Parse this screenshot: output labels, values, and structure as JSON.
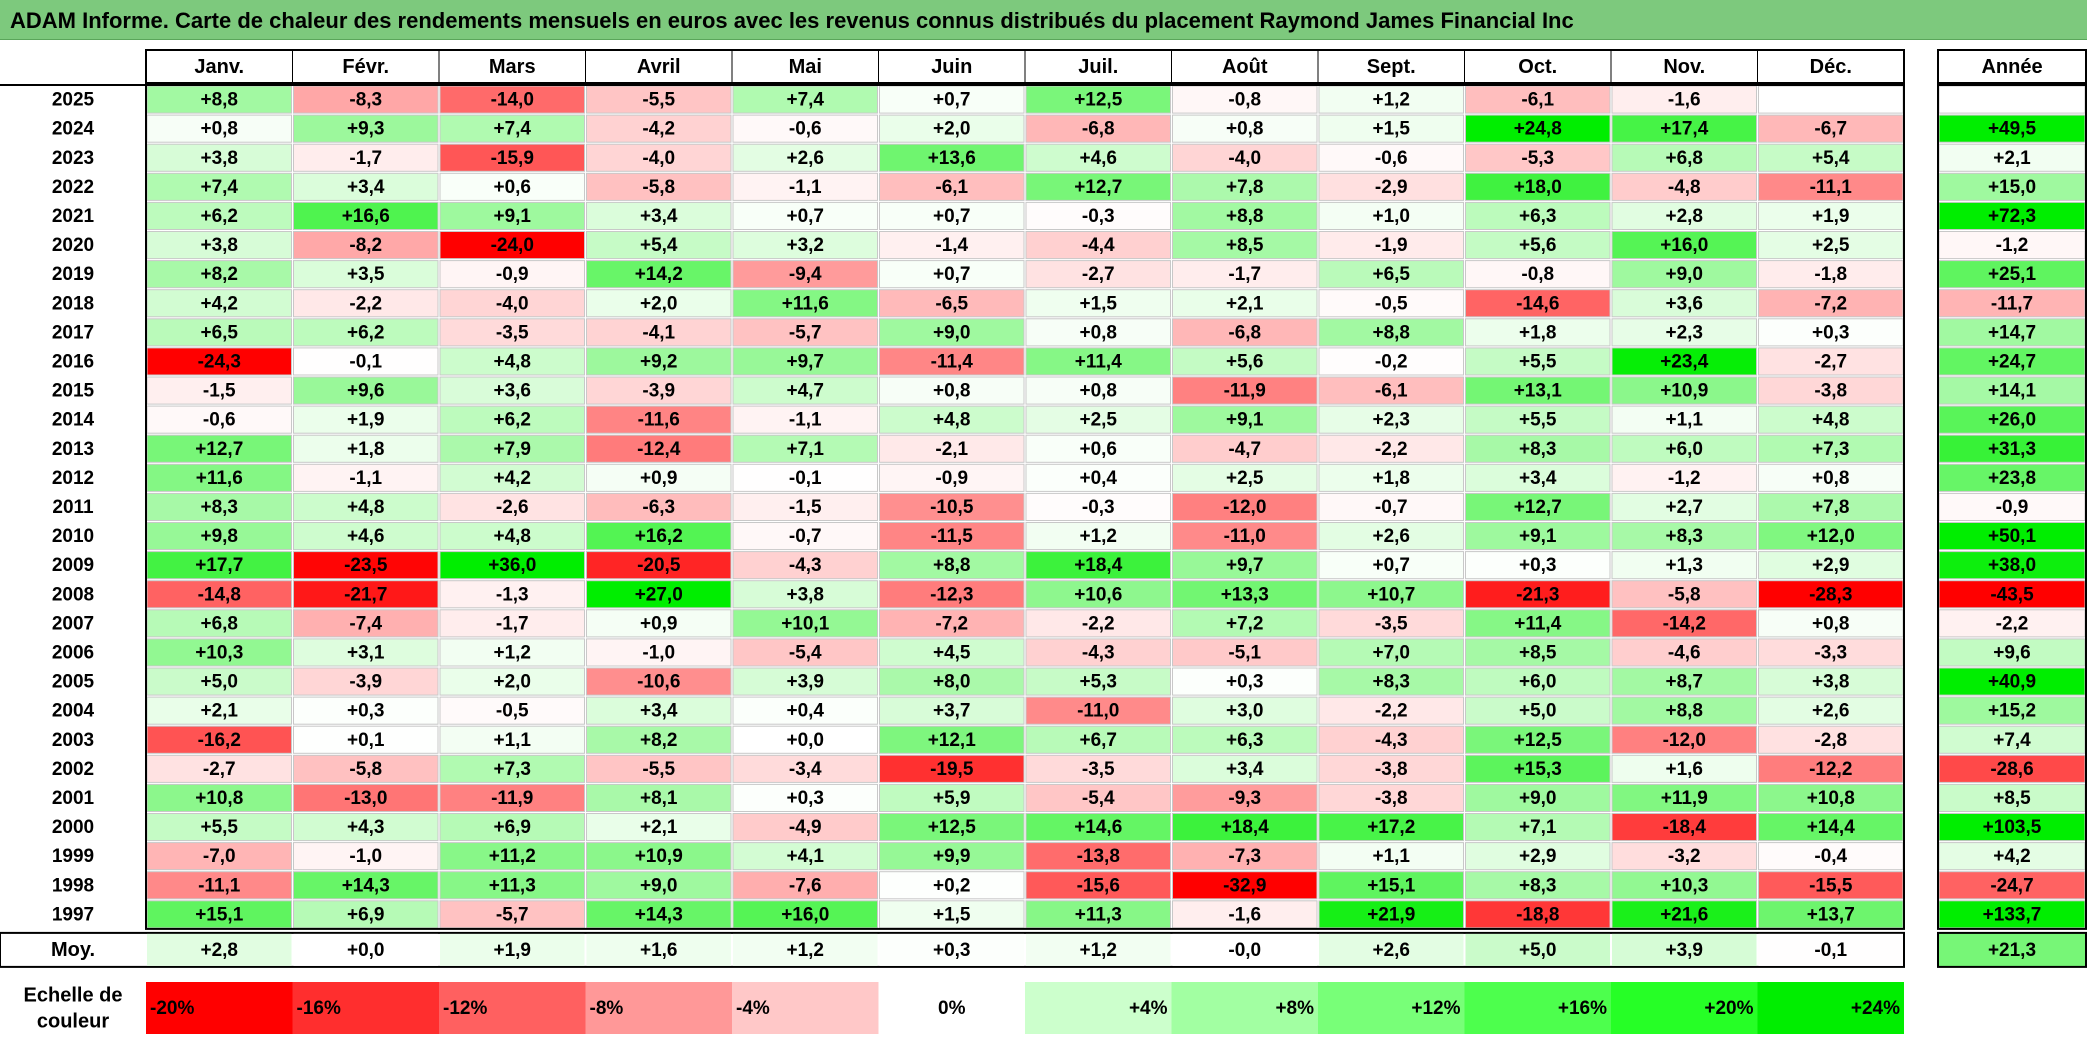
{
  "title": "ADAM Informe. Carte de chaleur des rendements mensuels en euros avec les revenus connus distribués du placement Raymond James Financial Inc",
  "chart_data": {
    "type": "heatmap",
    "months": [
      "Janv.",
      "Févr.",
      "Mars",
      "Avril",
      "Mai",
      "Juin",
      "Juil.",
      "Août",
      "Sept.",
      "Oct.",
      "Nov.",
      "Déc."
    ],
    "year_header": "Année",
    "rows": [
      {
        "year": "2025",
        "months": [
          "+8,8",
          "-8,3",
          "-14,0",
          "-5,5",
          "+7,4",
          "+0,7",
          "+12,5",
          "-0,8",
          "+1,2",
          "-6,1",
          "-1,6",
          ""
        ],
        "annual": ""
      },
      {
        "year": "2024",
        "months": [
          "+0,8",
          "+9,3",
          "+7,4",
          "-4,2",
          "-0,6",
          "+2,0",
          "-6,8",
          "+0,8",
          "+1,5",
          "+24,8",
          "+17,4",
          "-6,7"
        ],
        "annual": "+49,5"
      },
      {
        "year": "2023",
        "months": [
          "+3,8",
          "-1,7",
          "-15,9",
          "-4,0",
          "+2,6",
          "+13,6",
          "+4,6",
          "-4,0",
          "-0,6",
          "-5,3",
          "+6,8",
          "+5,4"
        ],
        "annual": "+2,1"
      },
      {
        "year": "2022",
        "months": [
          "+7,4",
          "+3,4",
          "+0,6",
          "-5,8",
          "-1,1",
          "-6,1",
          "+12,7",
          "+7,8",
          "-2,9",
          "+18,0",
          "-4,8",
          "-11,1"
        ],
        "annual": "+15,0"
      },
      {
        "year": "2021",
        "months": [
          "+6,2",
          "+16,6",
          "+9,1",
          "+3,4",
          "+0,7",
          "+0,7",
          "-0,3",
          "+8,8",
          "+1,0",
          "+6,3",
          "+2,8",
          "+1,9"
        ],
        "annual": "+72,3"
      },
      {
        "year": "2020",
        "months": [
          "+3,8",
          "-8,2",
          "-24,0",
          "+5,4",
          "+3,2",
          "-1,4",
          "-4,4",
          "+8,5",
          "-1,9",
          "+5,6",
          "+16,0",
          "+2,5"
        ],
        "annual": "-1,2"
      },
      {
        "year": "2019",
        "months": [
          "+8,2",
          "+3,5",
          "-0,9",
          "+14,2",
          "-9,4",
          "+0,7",
          "-2,7",
          "-1,7",
          "+6,5",
          "-0,8",
          "+9,0",
          "-1,8"
        ],
        "annual": "+25,1"
      },
      {
        "year": "2018",
        "months": [
          "+4,2",
          "-2,2",
          "-4,0",
          "+2,0",
          "+11,6",
          "-6,5",
          "+1,5",
          "+2,1",
          "-0,5",
          "-14,6",
          "+3,6",
          "-7,2"
        ],
        "annual": "-11,7"
      },
      {
        "year": "2017",
        "months": [
          "+6,5",
          "+6,2",
          "-3,5",
          "-4,1",
          "-5,7",
          "+9,0",
          "+0,8",
          "-6,8",
          "+8,8",
          "+1,8",
          "+2,3",
          "+0,3"
        ],
        "annual": "+14,7"
      },
      {
        "year": "2016",
        "months": [
          "-24,3",
          "-0,1",
          "+4,8",
          "+9,2",
          "+9,7",
          "-11,4",
          "+11,4",
          "+5,6",
          "-0,2",
          "+5,5",
          "+23,4",
          "-2,7"
        ],
        "annual": "+24,7"
      },
      {
        "year": "2015",
        "months": [
          "-1,5",
          "+9,6",
          "+3,6",
          "-3,9",
          "+4,7",
          "+0,8",
          "+0,8",
          "-11,9",
          "-6,1",
          "+13,1",
          "+10,9",
          "-3,8"
        ],
        "annual": "+14,1"
      },
      {
        "year": "2014",
        "months": [
          "-0,6",
          "+1,9",
          "+6,2",
          "-11,6",
          "-1,1",
          "+4,8",
          "+2,5",
          "+9,1",
          "+2,3",
          "+5,5",
          "+1,1",
          "+4,8"
        ],
        "annual": "+26,0"
      },
      {
        "year": "2013",
        "months": [
          "+12,7",
          "+1,8",
          "+7,9",
          "-12,4",
          "+7,1",
          "-2,1",
          "+0,6",
          "-4,7",
          "-2,2",
          "+8,3",
          "+6,0",
          "+7,3"
        ],
        "annual": "+31,3"
      },
      {
        "year": "2012",
        "months": [
          "+11,6",
          "-1,1",
          "+4,2",
          "+0,9",
          "-0,1",
          "-0,9",
          "+0,4",
          "+2,5",
          "+1,8",
          "+3,4",
          "-1,2",
          "+0,8"
        ],
        "annual": "+23,8"
      },
      {
        "year": "2011",
        "months": [
          "+8,3",
          "+4,8",
          "-2,6",
          "-6,3",
          "-1,5",
          "-10,5",
          "-0,3",
          "-12,0",
          "-0,7",
          "+12,7",
          "+2,7",
          "+7,8"
        ],
        "annual": "-0,9"
      },
      {
        "year": "2010",
        "months": [
          "+9,8",
          "+4,6",
          "+4,8",
          "+16,2",
          "-0,7",
          "-11,5",
          "+1,2",
          "-11,0",
          "+2,6",
          "+9,1",
          "+8,3",
          "+12,0"
        ],
        "annual": "+50,1"
      },
      {
        "year": "2009",
        "months": [
          "+17,7",
          "-23,5",
          "+36,0",
          "-20,5",
          "-4,3",
          "+8,8",
          "+18,4",
          "+9,7",
          "+0,7",
          "+0,3",
          "+1,3",
          "+2,9"
        ],
        "annual": "+38,0"
      },
      {
        "year": "2008",
        "months": [
          "-14,8",
          "-21,7",
          "-1,3",
          "+27,0",
          "+3,8",
          "-12,3",
          "+10,6",
          "+13,3",
          "+10,7",
          "-21,3",
          "-5,8",
          "-28,3"
        ],
        "annual": "-43,5"
      },
      {
        "year": "2007",
        "months": [
          "+6,8",
          "-7,4",
          "-1,7",
          "+0,9",
          "+10,1",
          "-7,2",
          "-2,2",
          "+7,2",
          "-3,5",
          "+11,4",
          "-14,2",
          "+0,8"
        ],
        "annual": "-2,2"
      },
      {
        "year": "2006",
        "months": [
          "+10,3",
          "+3,1",
          "+1,2",
          "-1,0",
          "-5,4",
          "+4,5",
          "-4,3",
          "-5,1",
          "+7,0",
          "+8,5",
          "-4,6",
          "-3,3"
        ],
        "annual": "+9,6"
      },
      {
        "year": "2005",
        "months": [
          "+5,0",
          "-3,9",
          "+2,0",
          "-10,6",
          "+3,9",
          "+8,0",
          "+5,3",
          "+0,3",
          "+8,3",
          "+6,0",
          "+8,7",
          "+3,8"
        ],
        "annual": "+40,9"
      },
      {
        "year": "2004",
        "months": [
          "+2,1",
          "+0,3",
          "-0,5",
          "+3,4",
          "+0,4",
          "+3,7",
          "-11,0",
          "+3,0",
          "-2,2",
          "+5,0",
          "+8,8",
          "+2,6"
        ],
        "annual": "+15,2"
      },
      {
        "year": "2003",
        "months": [
          "-16,2",
          "+0,1",
          "+1,1",
          "+8,2",
          "+0,0",
          "+12,1",
          "+6,7",
          "+6,3",
          "-4,3",
          "+12,5",
          "-12,0",
          "-2,8"
        ],
        "annual": "+7,4"
      },
      {
        "year": "2002",
        "months": [
          "-2,7",
          "-5,8",
          "+7,3",
          "-5,5",
          "-3,4",
          "-19,5",
          "-3,5",
          "+3,4",
          "-3,8",
          "+15,3",
          "+1,6",
          "-12,2"
        ],
        "annual": "-28,6"
      },
      {
        "year": "2001",
        "months": [
          "+10,8",
          "-13,0",
          "-11,9",
          "+8,1",
          "+0,3",
          "+5,9",
          "-5,4",
          "-9,3",
          "-3,8",
          "+9,0",
          "+11,9",
          "+10,8"
        ],
        "annual": "+8,5"
      },
      {
        "year": "2000",
        "months": [
          "+5,5",
          "+4,3",
          "+6,9",
          "+2,1",
          "-4,9",
          "+12,5",
          "+14,6",
          "+18,4",
          "+17,2",
          "+7,1",
          "-18,4",
          "+14,4"
        ],
        "annual": "+103,5"
      },
      {
        "year": "1999",
        "months": [
          "-7,0",
          "-1,0",
          "+11,2",
          "+10,9",
          "+4,1",
          "+9,9",
          "-13,8",
          "-7,3",
          "+1,1",
          "+2,9",
          "-3,2",
          "-0,4"
        ],
        "annual": "+4,2"
      },
      {
        "year": "1998",
        "months": [
          "-11,1",
          "+14,3",
          "+11,3",
          "+9,0",
          "-7,6",
          "+0,2",
          "-15,6",
          "-32,9",
          "+15,1",
          "+8,3",
          "+10,3",
          "-15,5"
        ],
        "annual": "-24,7"
      },
      {
        "year": "1997",
        "months": [
          "+15,1",
          "+6,9",
          "-5,7",
          "+14,3",
          "+16,0",
          "+1,5",
          "+11,3",
          "-1,6",
          "+21,9",
          "-18,8",
          "+21,6",
          "+13,7"
        ],
        "annual": "+133,7"
      }
    ],
    "average": {
      "label": "Moy.",
      "months": [
        "+2,8",
        "+0,0",
        "+1,9",
        "+1,6",
        "+1,2",
        "+0,3",
        "+1,2",
        "-0,0",
        "+2,6",
        "+5,0",
        "+3,9",
        "-0,1"
      ],
      "annual": "+21,3"
    },
    "scale": {
      "label_line1": "Echelle de",
      "label_line2": "couleur",
      "values": [
        "-20%",
        "-16%",
        "-12%",
        "-8%",
        "-4%",
        "0%",
        "+4%",
        "+8%",
        "+12%",
        "+16%",
        "+20%",
        "+24%"
      ]
    },
    "colors": {
      "negative": "#ff0000",
      "zero": "#ffffff",
      "positive": "#00ee00",
      "title_bg": "#7dc97d"
    }
  }
}
